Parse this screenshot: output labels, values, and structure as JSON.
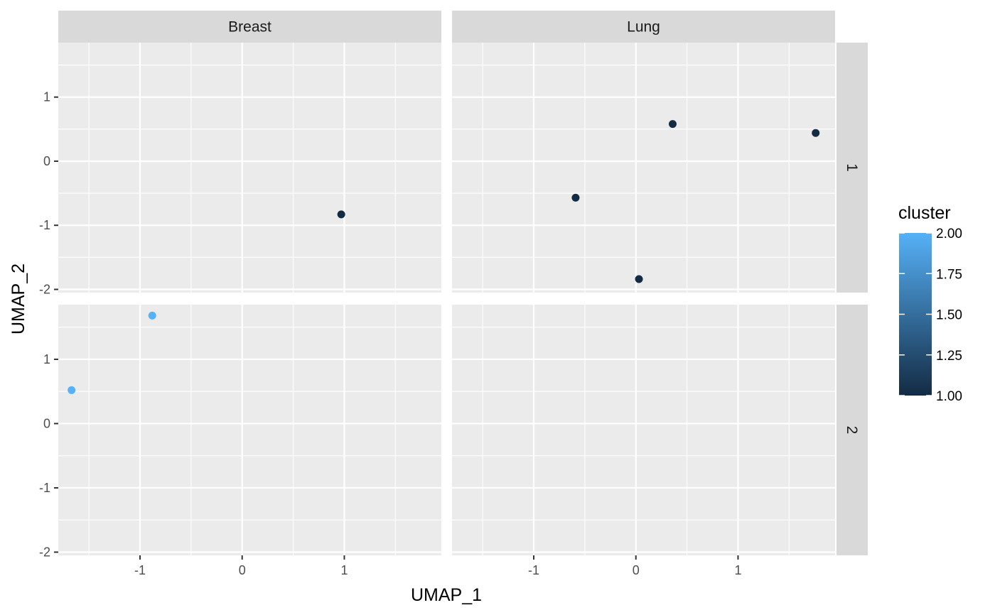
{
  "chart_data": {
    "type": "scatter",
    "facet_cols": [
      "Breast",
      "Lung"
    ],
    "facet_rows": [
      "1",
      "2"
    ],
    "xlabel": "UMAP_1",
    "ylabel": "UMAP_2",
    "xlim": [
      -1.8,
      1.95
    ],
    "ylim": [
      -2.05,
      1.85
    ],
    "x_ticks": [
      -1,
      0,
      1
    ],
    "y_ticks": [
      -2,
      -1,
      0,
      1
    ],
    "grid": true,
    "color_scale": {
      "title": "cluster",
      "low": 1,
      "high": 2,
      "low_color": "#132b43",
      "high_color": "#56b1f7",
      "ticks": [
        "1.00",
        "1.25",
        "1.50",
        "1.75",
        "2.00"
      ],
      "legend_position": "right"
    },
    "points": [
      {
        "col": "Breast",
        "row": "1",
        "x": 0.97,
        "y": -0.83,
        "cluster": 1
      },
      {
        "col": "Lung",
        "row": "1",
        "x": -0.59,
        "y": -0.57,
        "cluster": 1
      },
      {
        "col": "Lung",
        "row": "1",
        "x": 0.36,
        "y": 0.58,
        "cluster": 1
      },
      {
        "col": "Lung",
        "row": "1",
        "x": 1.76,
        "y": 0.44,
        "cluster": 1
      },
      {
        "col": "Lung",
        "row": "1",
        "x": 0.03,
        "y": -1.84,
        "cluster": 1
      },
      {
        "col": "Breast",
        "row": "2",
        "x": -0.88,
        "y": 1.68,
        "cluster": 2
      },
      {
        "col": "Breast",
        "row": "2",
        "x": -1.67,
        "y": 0.52,
        "cluster": 2
      }
    ]
  }
}
